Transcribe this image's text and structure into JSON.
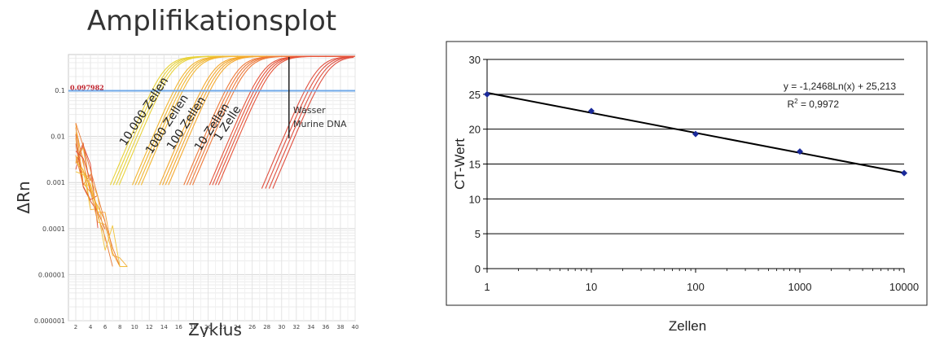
{
  "chart_data": [
    {
      "type": "line",
      "title": "Amplifikationsplot",
      "xlabel": "Zyklus",
      "ylabel": "ΔRn",
      "yscale": "log",
      "xlim": [
        1,
        40
      ],
      "ylim": [
        1e-06,
        0.6
      ],
      "x_ticks": [
        "2",
        "4",
        "6",
        "8",
        "10",
        "12",
        "14",
        "16",
        "18",
        "20",
        "22",
        "24",
        "26",
        "28",
        "30",
        "32",
        "34",
        "36",
        "38",
        "40"
      ],
      "y_ticks": [
        "0.1",
        "0.01",
        "0.001",
        "0.0001",
        "0.00001",
        "0.000001"
      ],
      "threshold": {
        "value": 0.097982,
        "label": "0.097982",
        "color": "#6fa8e8"
      },
      "marker_cycle": 31,
      "curve_labels": [
        "10.000 Zellen",
        "1000 Zellen",
        "100 Zellen",
        "10 Zellen",
        "1 Zelle"
      ],
      "annotation": [
        "Wasser",
        "Murine DNA"
      ],
      "series": [
        {
          "label": "10.000 Zellen",
          "color": "#e8d23a",
          "ct": 10.5
        },
        {
          "label": "1000 Zellen",
          "color": "#f2b632",
          "ct": 13.5
        },
        {
          "label": "100 Zellen",
          "color": "#f4a82e",
          "ct": 17.2
        },
        {
          "label": "10 Zellen",
          "color": "#ee7a3a",
          "ct": 20.5
        },
        {
          "label": "1 Zelle",
          "color": "#e6553a",
          "ct": 24.0
        }
      ],
      "water_curves": {
        "color": "#e05040",
        "ct": 31.5
      },
      "grid": true
    },
    {
      "type": "scatter",
      "xlabel": "Zellen",
      "ylabel": "CT-Wert",
      "xscale": "log",
      "xlim": [
        1,
        10000
      ],
      "ylim": [
        0,
        30
      ],
      "x_ticks": [
        "1",
        "10",
        "100",
        "1000",
        "10000"
      ],
      "y_ticks": [
        "0",
        "5",
        "10",
        "15",
        "20",
        "25",
        "30"
      ],
      "points": [
        {
          "x": 1,
          "y": 25.0
        },
        {
          "x": 10,
          "y": 22.6
        },
        {
          "x": 100,
          "y": 19.3
        },
        {
          "x": 1000,
          "y": 16.8
        },
        {
          "x": 10000,
          "y": 13.7
        }
      ],
      "trendline": {
        "slope": -1.2468,
        "intercept": 25.213,
        "equation": "y = -1,2468Ln(x) + 25,213",
        "r2_label": "R",
        "r2_value": "= 0,9972"
      },
      "grid": "horizontal",
      "marker_color": "#1a2a9a"
    }
  ]
}
